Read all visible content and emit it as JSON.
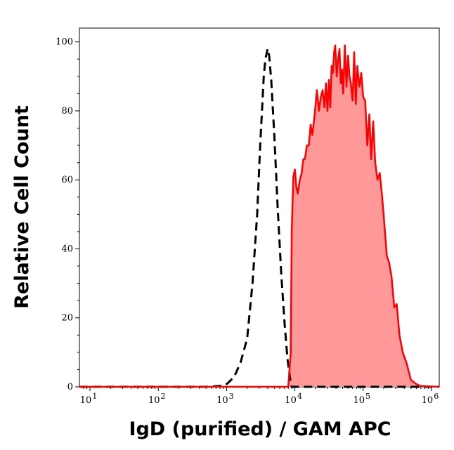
{
  "chart_data": {
    "type": "area",
    "xlabel": "IgD (purified) / GAM APC",
    "ylabel": "Relative Cell Count",
    "xscale": "log",
    "xlim": [
      7,
      1300000
    ],
    "ylim": [
      0,
      104
    ],
    "x_ticks": [
      {
        "value": 10,
        "base": "10",
        "exp": "1"
      },
      {
        "value": 100,
        "base": "10",
        "exp": "2"
      },
      {
        "value": 1000,
        "base": "10",
        "exp": "3"
      },
      {
        "value": 10000,
        "base": "10",
        "exp": "4"
      },
      {
        "value": 100000,
        "base": "10",
        "exp": "5"
      },
      {
        "value": 1000000,
        "base": "10",
        "exp": "6"
      }
    ],
    "y_ticks": [
      "0",
      "20",
      "40",
      "60",
      "80",
      "100"
    ],
    "grid": false,
    "colors": {
      "stained_line": "#ff0000",
      "stained_fill": "#ff9999",
      "control_line": "#000000"
    },
    "series": [
      {
        "style": "dashed-line",
        "x": [
          7,
          500,
          900,
          1000,
          1100,
          1300,
          1600,
          2000,
          2400,
          2800,
          3100,
          3300,
          3500,
          3700,
          4000,
          4200,
          4500,
          5000,
          5600,
          6300,
          7100,
          7800,
          8500,
          9000,
          1300000
        ],
        "y": [
          0,
          0,
          0.3,
          0.8,
          1.5,
          3,
          7,
          14,
          30,
          50,
          70,
          80,
          90,
          95,
          98,
          96,
          89,
          73,
          52,
          33,
          18,
          8,
          2.5,
          0,
          0
        ]
      },
      {
        "style": "filled-area",
        "x": [
          7,
          8000,
          8700,
          9000,
          9500,
          10000,
          10500,
          11000,
          11800,
          12600,
          13300,
          14000,
          15000,
          16000,
          17000,
          18000,
          19500,
          21000,
          22500,
          24000,
          25500,
          27000,
          28500,
          30000,
          31500,
          33000,
          34500,
          36000,
          37500,
          39000,
          41000,
          43000,
          45000,
          47000,
          49000,
          51000,
          54000,
          57000,
          60000,
          63000,
          66000,
          70000,
          74000,
          78000,
          82000,
          88000,
          94000,
          100000,
          107000,
          115000,
          123000,
          131000,
          140000,
          150000,
          162000,
          175000,
          190000,
          205000,
          222000,
          240000,
          260000,
          285000,
          310000,
          340000,
          380000,
          430000,
          500000,
          600000,
          700000,
          1300000
        ],
        "y": [
          0,
          0,
          10,
          45,
          61,
          63,
          58,
          56,
          60,
          62,
          66,
          66,
          70,
          70,
          76,
          73,
          79,
          86,
          80,
          84,
          86,
          81,
          88,
          80,
          89,
          81,
          93,
          91,
          97,
          99,
          90,
          95,
          98,
          88,
          92,
          85,
          99,
          87,
          96,
          90,
          88,
          83,
          97,
          82,
          93,
          87,
          91,
          84,
          83,
          70,
          79,
          66,
          77,
          65,
          60,
          62,
          55,
          47,
          38,
          36,
          32,
          23,
          24,
          15,
          10,
          7,
          2,
          0.8,
          0.2,
          0
        ]
      }
    ]
  }
}
